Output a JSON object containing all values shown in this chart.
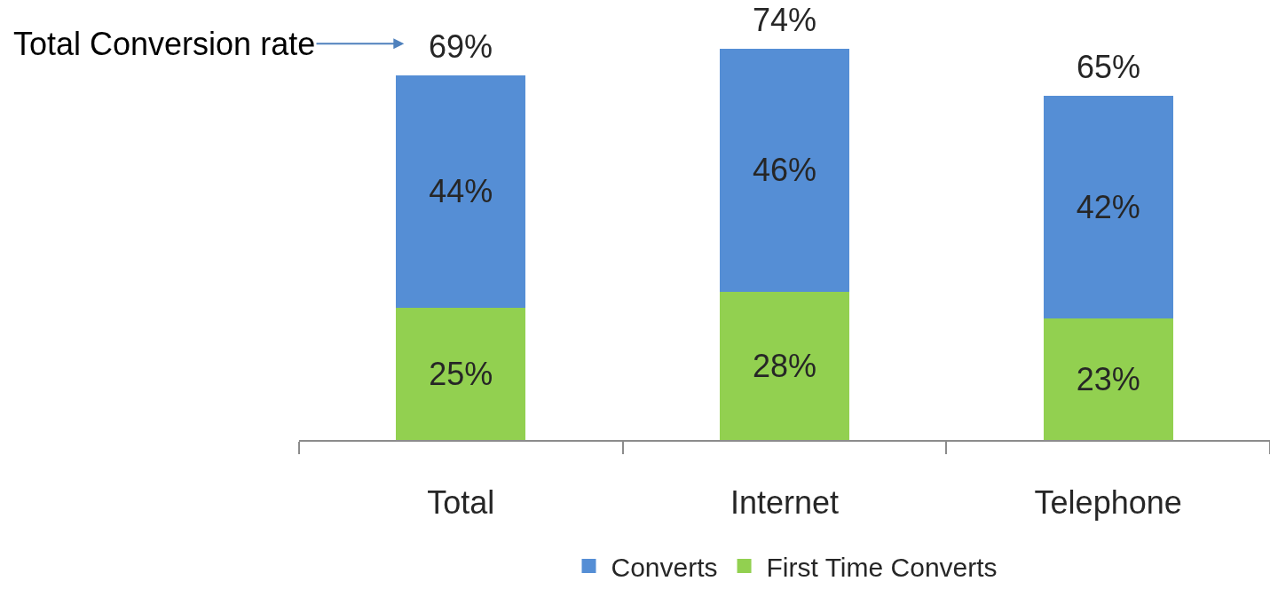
{
  "chart_data": {
    "type": "bar",
    "stacked": true,
    "categories": [
      "Total",
      "Internet",
      "Telephone"
    ],
    "series": [
      {
        "name": "First Time Converts",
        "color": "#92d050",
        "values": [
          25,
          28,
          23
        ],
        "value_labels": [
          "25%",
          "28%",
          "23%"
        ]
      },
      {
        "name": "Converts",
        "color": "#558ed5",
        "values": [
          44,
          46,
          42
        ],
        "value_labels": [
          "44%",
          "46%",
          "42%"
        ]
      }
    ],
    "totals": [
      "69%",
      "74%",
      "65%"
    ],
    "annotations": [
      "Total Conversion rate"
    ],
    "tick_labels": "x",
    "legend": "bottom"
  }
}
